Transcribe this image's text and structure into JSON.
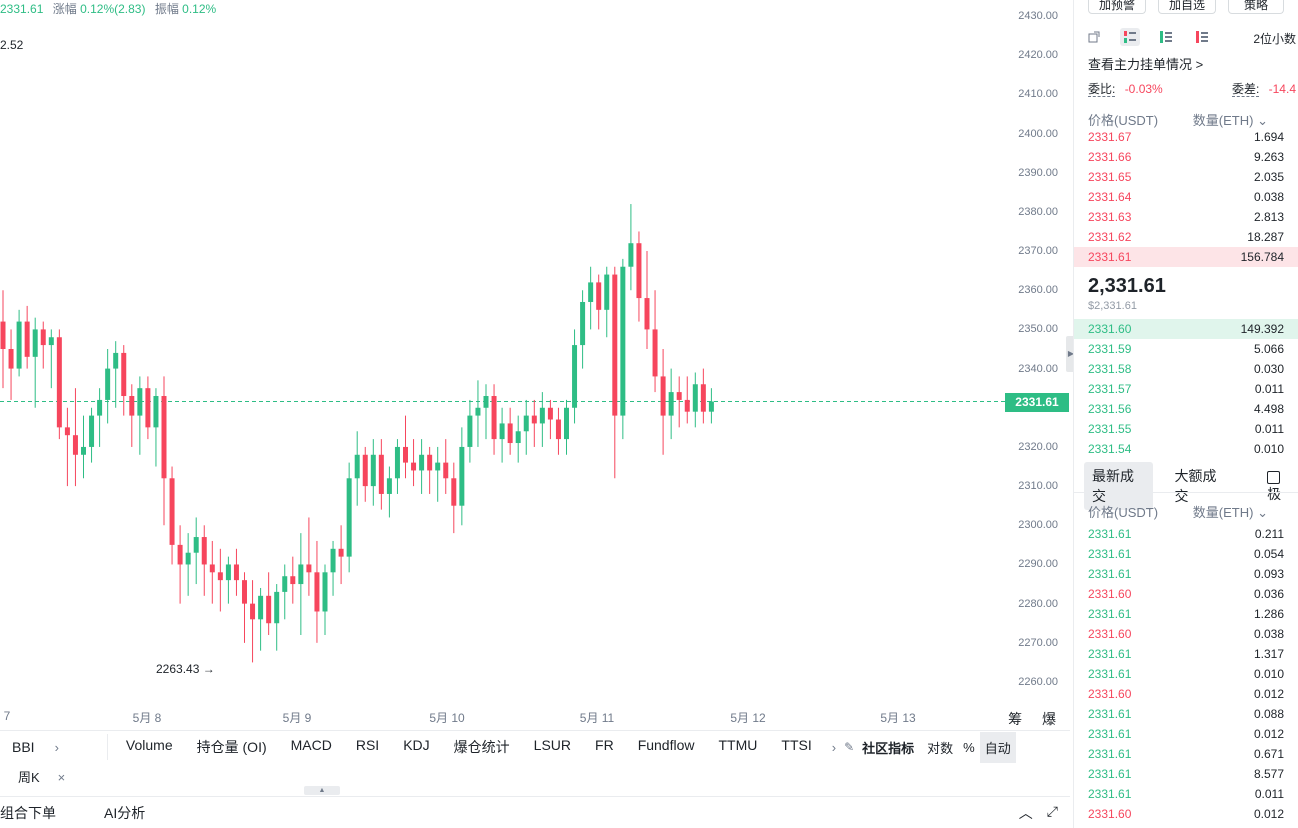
{
  "header_info": {
    "close": "2331.61",
    "change_label": "涨幅",
    "change_value": "0.12%(2.83)",
    "amplitude_label": "振幅",
    "amplitude_value": "0.12%"
  },
  "chart_data": {
    "type": "candlestick",
    "series": [],
    "ylim": [
      2255,
      2435
    ],
    "y_ticks": [
      "2430.00",
      "2420.00",
      "2410.00",
      "2400.00",
      "2390.00",
      "2380.00",
      "2370.00",
      "2360.00",
      "2350.00",
      "2340.00",
      "2330.00",
      "2320.00",
      "2310.00",
      "2300.00",
      "2290.00",
      "2280.00",
      "2270.00",
      "2260.00"
    ],
    "x_ticks": [
      "7",
      "5月 8",
      "5月 9",
      "5月 10",
      "5月 11",
      "5月 12",
      "5月 13"
    ],
    "current_price": "2331.61",
    "low_label": "2263.43",
    "high_label_partial": "2.52",
    "candles": [
      [
        2352,
        2360,
        2335,
        2345
      ],
      [
        2345,
        2350,
        2332,
        2340
      ],
      [
        2340,
        2355,
        2338,
        2352
      ],
      [
        2352,
        2356,
        2340,
        2343
      ],
      [
        2343,
        2353,
        2330,
        2350
      ],
      [
        2350,
        2352,
        2340,
        2346
      ],
      [
        2346,
        2350,
        2335,
        2348
      ],
      [
        2348,
        2350,
        2322,
        2325
      ],
      [
        2325,
        2330,
        2310,
        2323
      ],
      [
        2323,
        2335,
        2310,
        2318
      ],
      [
        2318,
        2328,
        2312,
        2320
      ],
      [
        2320,
        2330,
        2316,
        2328
      ],
      [
        2328,
        2335,
        2320,
        2332
      ],
      [
        2332,
        2345,
        2326,
        2340
      ],
      [
        2340,
        2347,
        2330,
        2344
      ],
      [
        2344,
        2346,
        2328,
        2333
      ],
      [
        2333,
        2336,
        2320,
        2328
      ],
      [
        2328,
        2338,
        2318,
        2335
      ],
      [
        2335,
        2338,
        2322,
        2325
      ],
      [
        2325,
        2335,
        2315,
        2333
      ],
      [
        2333,
        2338,
        2300,
        2312
      ],
      [
        2312,
        2315,
        2290,
        2295
      ],
      [
        2295,
        2300,
        2280,
        2290
      ],
      [
        2290,
        2298,
        2282,
        2293
      ],
      [
        2293,
        2302,
        2285,
        2297
      ],
      [
        2297,
        2300,
        2282,
        2290
      ],
      [
        2290,
        2296,
        2280,
        2288
      ],
      [
        2288,
        2294,
        2278,
        2286
      ],
      [
        2286,
        2292,
        2280,
        2290
      ],
      [
        2290,
        2294,
        2282,
        2286
      ],
      [
        2286,
        2288,
        2270,
        2280
      ],
      [
        2280,
        2286,
        2265,
        2276
      ],
      [
        2276,
        2284,
        2268,
        2282
      ],
      [
        2282,
        2288,
        2272,
        2275
      ],
      [
        2275,
        2285,
        2268,
        2283
      ],
      [
        2283,
        2290,
        2276,
        2287
      ],
      [
        2287,
        2292,
        2280,
        2285
      ],
      [
        2285,
        2298,
        2272,
        2290
      ],
      [
        2290,
        2302,
        2282,
        2288
      ],
      [
        2288,
        2296,
        2270,
        2278
      ],
      [
        2278,
        2290,
        2272,
        2288
      ],
      [
        2288,
        2296,
        2282,
        2294
      ],
      [
        2294,
        2300,
        2285,
        2292
      ],
      [
        2292,
        2316,
        2288,
        2312
      ],
      [
        2312,
        2324,
        2305,
        2318
      ],
      [
        2318,
        2320,
        2306,
        2310
      ],
      [
        2310,
        2322,
        2305,
        2318
      ],
      [
        2318,
        2322,
        2304,
        2308
      ],
      [
        2308,
        2315,
        2302,
        2312
      ],
      [
        2312,
        2322,
        2308,
        2320
      ],
      [
        2320,
        2328,
        2312,
        2316
      ],
      [
        2316,
        2322,
        2310,
        2314
      ],
      [
        2314,
        2322,
        2308,
        2318
      ],
      [
        2318,
        2320,
        2308,
        2314
      ],
      [
        2314,
        2320,
        2306,
        2316
      ],
      [
        2316,
        2322,
        2308,
        2312
      ],
      [
        2312,
        2316,
        2298,
        2305
      ],
      [
        2305,
        2325,
        2300,
        2320
      ],
      [
        2320,
        2332,
        2316,
        2328
      ],
      [
        2328,
        2337,
        2320,
        2330
      ],
      [
        2330,
        2336,
        2322,
        2333
      ],
      [
        2333,
        2336,
        2318,
        2322
      ],
      [
        2322,
        2330,
        2316,
        2326
      ],
      [
        2326,
        2330,
        2318,
        2321
      ],
      [
        2321,
        2328,
        2316,
        2324
      ],
      [
        2324,
        2332,
        2318,
        2328
      ],
      [
        2328,
        2332,
        2320,
        2326
      ],
      [
        2326,
        2334,
        2320,
        2330
      ],
      [
        2330,
        2332,
        2322,
        2327
      ],
      [
        2327,
        2330,
        2318,
        2322
      ],
      [
        2322,
        2332,
        2318,
        2330
      ],
      [
        2330,
        2350,
        2326,
        2346
      ],
      [
        2346,
        2360,
        2340,
        2357
      ],
      [
        2357,
        2366,
        2350,
        2362
      ],
      [
        2362,
        2364,
        2350,
        2355
      ],
      [
        2355,
        2366,
        2348,
        2364
      ],
      [
        2364,
        2366,
        2312,
        2328
      ],
      [
        2328,
        2368,
        2322,
        2366
      ],
      [
        2366,
        2382,
        2360,
        2372
      ],
      [
        2372,
        2375,
        2352,
        2358
      ],
      [
        2358,
        2370,
        2345,
        2350
      ],
      [
        2350,
        2360,
        2334,
        2338
      ],
      [
        2338,
        2345,
        2318,
        2328
      ],
      [
        2328,
        2340,
        2322,
        2334
      ],
      [
        2334,
        2338,
        2325,
        2332
      ],
      [
        2332,
        2338,
        2326,
        2329
      ],
      [
        2329,
        2339,
        2325,
        2336
      ],
      [
        2336,
        2340,
        2326,
        2329
      ],
      [
        2329,
        2335,
        2326,
        2331.6
      ]
    ]
  },
  "indicators": {
    "bbi": "BBI",
    "items": [
      "Volume",
      "持仓量 (OI)",
      "MACD",
      "RSI",
      "KDJ",
      "爆仓统计",
      "LSUR",
      "FR",
      "Fundflow",
      "TTMU",
      "TTSI"
    ],
    "community": "社区指标",
    "log": "对数",
    "percent": "%",
    "auto": "自动"
  },
  "period": {
    "active": "周K"
  },
  "chart_side": {
    "labels": "筹 爆"
  },
  "bottom_tabs": [
    "组合下单",
    "AI分析"
  ],
  "right_panel": {
    "top_buttons": [
      "加预警",
      "加自选",
      "策略"
    ],
    "decimals": "2位小数",
    "depth_link": "查看主力挂单情况 >",
    "ratio_label": "委比:",
    "ratio_value": "-0.03%",
    "diff_label": "委差:",
    "diff_value": "-14.4",
    "price_header": "价格(USDT)",
    "qty_header": "数量(ETH)",
    "asks": [
      {
        "price": "2331.67",
        "qty": "1.694"
      },
      {
        "price": "2331.66",
        "qty": "9.263"
      },
      {
        "price": "2331.65",
        "qty": "2.035"
      },
      {
        "price": "2331.64",
        "qty": "0.038"
      },
      {
        "price": "2331.63",
        "qty": "2.813"
      },
      {
        "price": "2331.62",
        "qty": "18.287"
      },
      {
        "price": "2331.61",
        "qty": "156.784"
      }
    ],
    "mid_price": "2,331.61",
    "mid_usd": "$2,331.61",
    "bids": [
      {
        "price": "2331.60",
        "qty": "149.392"
      },
      {
        "price": "2331.59",
        "qty": "5.066"
      },
      {
        "price": "2331.58",
        "qty": "0.030"
      },
      {
        "price": "2331.57",
        "qty": "0.011"
      },
      {
        "price": "2331.56",
        "qty": "4.498"
      },
      {
        "price": "2331.55",
        "qty": "0.011"
      },
      {
        "price": "2331.54",
        "qty": "0.010"
      }
    ],
    "trade_tabs": [
      "最新成交",
      "大额成交"
    ],
    "trade_checkbox": "极",
    "trade_price_header": "价格(USDT)",
    "trade_qty_header": "数量(ETH)",
    "trades": [
      {
        "price": "2331.61",
        "qty": "0.211",
        "side": "buy"
      },
      {
        "price": "2331.61",
        "qty": "0.054",
        "side": "buy"
      },
      {
        "price": "2331.61",
        "qty": "0.093",
        "side": "buy"
      },
      {
        "price": "2331.60",
        "qty": "0.036",
        "side": "sell"
      },
      {
        "price": "2331.61",
        "qty": "1.286",
        "side": "buy"
      },
      {
        "price": "2331.60",
        "qty": "0.038",
        "side": "sell"
      },
      {
        "price": "2331.61",
        "qty": "1.317",
        "side": "buy"
      },
      {
        "price": "2331.61",
        "qty": "0.010",
        "side": "buy"
      },
      {
        "price": "2331.60",
        "qty": "0.012",
        "side": "sell"
      },
      {
        "price": "2331.61",
        "qty": "0.088",
        "side": "buy"
      },
      {
        "price": "2331.61",
        "qty": "0.012",
        "side": "buy"
      },
      {
        "price": "2331.61",
        "qty": "0.671",
        "side": "buy"
      },
      {
        "price": "2331.61",
        "qty": "8.577",
        "side": "buy"
      },
      {
        "price": "2331.61",
        "qty": "0.011",
        "side": "buy"
      },
      {
        "price": "2331.60",
        "qty": "0.012",
        "side": "sell"
      }
    ]
  },
  "colors": {
    "up": "#2ebd85",
    "down": "#f6465d"
  }
}
